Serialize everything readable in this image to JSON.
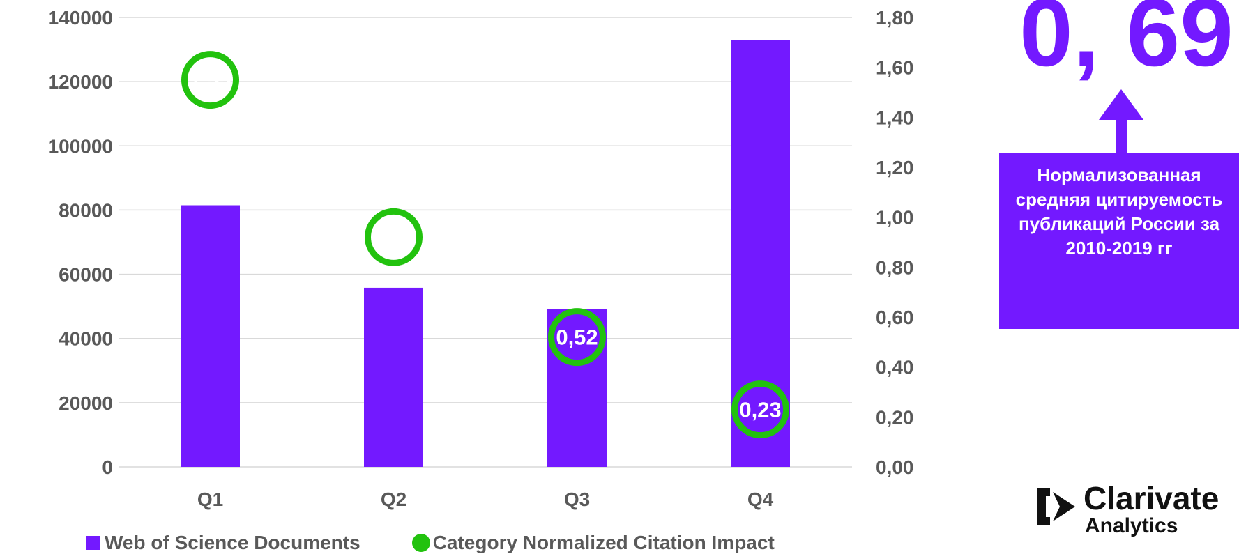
{
  "colors": {
    "bar": "#7319FF",
    "circle": "#22C20E",
    "grid": "#D9D9D9",
    "tick_text": "#595959",
    "box": "#7319FF"
  },
  "chart_data": {
    "type": "bar",
    "categories": [
      "Q1",
      "Q2",
      "Q3",
      "Q4"
    ],
    "series": [
      {
        "name": "Web of Science Documents",
        "kind": "bar",
        "axis": "left",
        "values": [
          81500,
          55800,
          49200,
          133000
        ]
      },
      {
        "name": "Category Normalized Citation Impact",
        "kind": "marker",
        "axis": "right",
        "values": [
          1.55,
          0.92,
          0.52,
          0.23
        ],
        "labels": [
          "1,55",
          "0,92",
          "0,52",
          "0,23"
        ]
      }
    ],
    "left_axis": {
      "ylim": [
        0,
        140000
      ],
      "ticks": [
        "0",
        "20000",
        "40000",
        "60000",
        "80000",
        "100000",
        "120000",
        "140000"
      ]
    },
    "right_axis": {
      "ylim": [
        0,
        1.8
      ],
      "ticks": [
        "0,00",
        "0,20",
        "0,40",
        "0,60",
        "0,80",
        "1,00",
        "1,20",
        "1,40",
        "1,60",
        "1,80"
      ]
    },
    "grid": true,
    "legend": {
      "position": "bottom",
      "items": [
        "Web of Science Documents",
        "Category Normalized Citation Impact"
      ]
    }
  },
  "highlight": {
    "value": "0, 69",
    "note": "Нормализованная средняя цитируемость публикаций России за 2010-2019 гг"
  },
  "logo": {
    "name": "Clarivate",
    "sub": "Analytics"
  }
}
